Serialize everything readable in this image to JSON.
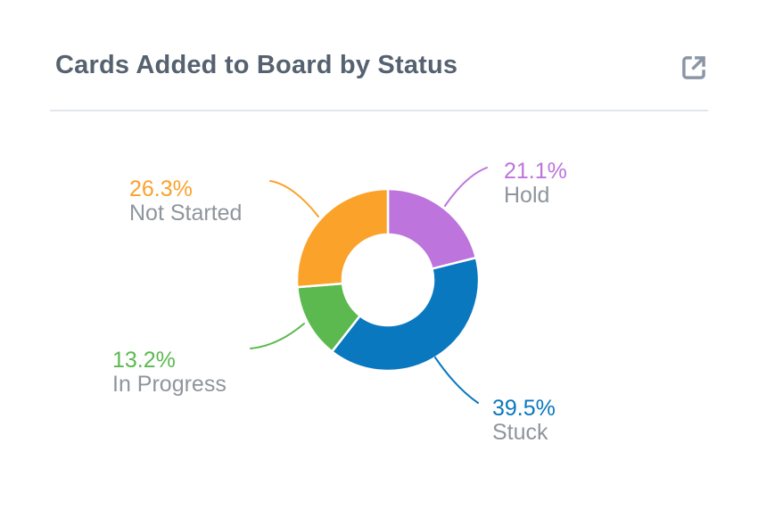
{
  "header": {
    "title": "Cards Added to Board by Status",
    "external_link_icon": "open-in-new-window"
  },
  "chart_data": {
    "type": "pie",
    "subtype": "donut",
    "title": "Cards Added to Board by Status",
    "unit": "%",
    "start_angle_deg": 0,
    "direction": "clockwise",
    "legend_position": "callout-labels",
    "label_text_color": "#8f959d",
    "slices": [
      {
        "label": "Hold",
        "value": 21.1,
        "pct_label": "21.1%",
        "color": "#bd74dc"
      },
      {
        "label": "Stuck",
        "value": 39.5,
        "pct_label": "39.5%",
        "color": "#0a78bf"
      },
      {
        "label": "In Progress",
        "value": 13.2,
        "pct_label": "13.2%",
        "color": "#5cb950"
      },
      {
        "label": "Not Started",
        "value": 26.3,
        "pct_label": "26.3%",
        "color": "#fba22b"
      }
    ]
  }
}
